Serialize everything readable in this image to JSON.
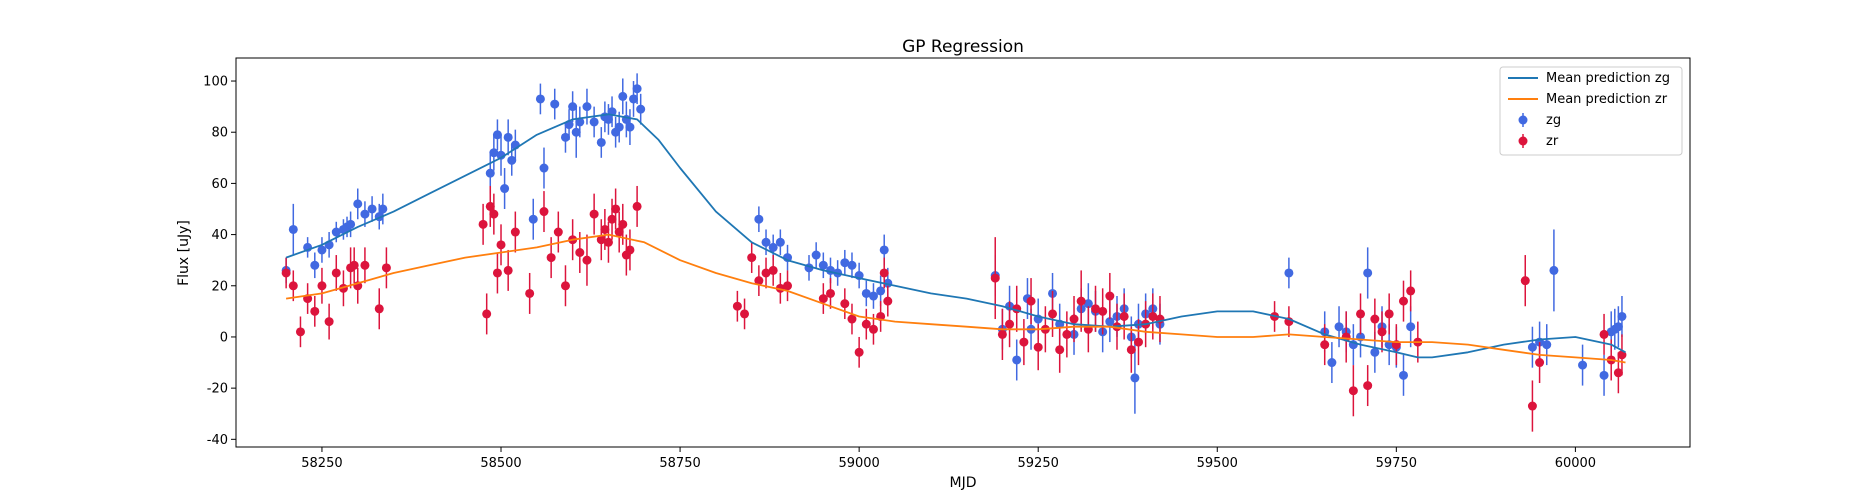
{
  "chart_data": {
    "type": "scatter",
    "title": "GP Regression",
    "xlabel": "MJD",
    "ylabel": "Flux [uJy]",
    "xlim": [
      58130,
      60160
    ],
    "ylim": [
      -43,
      109
    ],
    "xticks": [
      58250,
      58500,
      58750,
      59000,
      59250,
      59500,
      59750,
      60000
    ],
    "yticks": [
      -40,
      -20,
      0,
      20,
      40,
      60,
      80,
      100
    ],
    "legend_position": "top-right",
    "grid": false,
    "colors": {
      "zg_line": "#1f77b4",
      "zr_line": "#ff7f0e",
      "zg_points": "#4169e1",
      "zr_points": "#dc143c"
    },
    "lines": [
      {
        "name": "Mean prediction zg",
        "x": [
          58200,
          58250,
          58300,
          58350,
          58400,
          58450,
          58500,
          58550,
          58600,
          58650,
          58690,
          58720,
          58750,
          58800,
          58850,
          58900,
          58950,
          59000,
          59050,
          59100,
          59150,
          59200,
          59250,
          59300,
          59350,
          59400,
          59450,
          59500,
          59550,
          59600,
          59650,
          59700,
          59750,
          59780,
          59800,
          59850,
          59900,
          59950,
          60000,
          60050,
          60070
        ],
        "y": [
          31,
          36,
          43,
          49,
          56,
          63,
          70,
          79,
          85,
          87,
          85,
          77,
          66,
          49,
          37,
          30,
          26,
          23,
          20,
          17,
          15,
          12,
          8,
          5,
          4,
          5,
          8,
          10,
          10,
          7,
          1,
          -3,
          -6,
          -8,
          -8,
          -6,
          -3,
          -1,
          0,
          -3,
          -6
        ]
      },
      {
        "name": "Mean prediction zr",
        "x": [
          58200,
          58250,
          58300,
          58350,
          58400,
          58450,
          58500,
          58550,
          58600,
          58650,
          58700,
          58750,
          58800,
          58850,
          58900,
          58950,
          59000,
          59050,
          59100,
          59150,
          59200,
          59250,
          59300,
          59350,
          59400,
          59450,
          59500,
          59550,
          59600,
          59650,
          59700,
          59750,
          59800,
          59850,
          59900,
          59950,
          60000,
          60050,
          60070
        ],
        "y": [
          15,
          17,
          21,
          25,
          28,
          31,
          33,
          35,
          38,
          40,
          37,
          30,
          25,
          21,
          18,
          13,
          8,
          6,
          5,
          4,
          3,
          3,
          4,
          4,
          2,
          1,
          0,
          0,
          1,
          0,
          -1,
          -2,
          -2,
          -3,
          -5,
          -7,
          -8,
          -9,
          -10
        ]
      }
    ],
    "series": [
      {
        "name": "zg",
        "x": [
          58200,
          58210,
          58230,
          58240,
          58250,
          58260,
          58270,
          58280,
          58285,
          58290,
          58300,
          58310,
          58320,
          58330,
          58335,
          58485,
          58490,
          58495,
          58500,
          58505,
          58510,
          58515,
          58520,
          58545,
          58555,
          58560,
          58575,
          58590,
          58595,
          58600,
          58605,
          58610,
          58620,
          58630,
          58640,
          58645,
          58650,
          58655,
          58660,
          58665,
          58670,
          58675,
          58680,
          58685,
          58690,
          58695,
          58860,
          58870,
          58880,
          58890,
          58900,
          58930,
          58940,
          58950,
          58960,
          58970,
          58980,
          58990,
          59000,
          59010,
          59020,
          59030,
          59035,
          59040,
          59190,
          59200,
          59210,
          59220,
          59235,
          59240,
          59250,
          59270,
          59280,
          59300,
          59310,
          59320,
          59330,
          59340,
          59350,
          59360,
          59370,
          59380,
          59385,
          59390,
          59400,
          59410,
          59420,
          59600,
          59650,
          59660,
          59670,
          59680,
          59690,
          59700,
          59710,
          59720,
          59730,
          59740,
          59750,
          59760,
          59770,
          59940,
          59950,
          59960,
          59970,
          60010,
          60040,
          60050,
          60055,
          60060,
          60065
        ],
        "y": [
          26,
          42,
          35,
          28,
          34,
          36,
          41,
          42,
          43,
          44,
          52,
          48,
          50,
          47,
          50,
          64,
          72,
          79,
          71,
          58,
          78,
          69,
          75,
          46,
          93,
          66,
          91,
          78,
          83,
          90,
          80,
          84,
          90,
          84,
          76,
          86,
          85,
          88,
          80,
          82,
          94,
          85,
          82,
          93,
          97,
          89,
          46,
          37,
          35,
          37,
          31,
          27,
          32,
          28,
          26,
          25,
          29,
          28,
          24,
          17,
          16,
          18,
          34,
          21,
          24,
          3,
          12,
          -9,
          15,
          3,
          7,
          17,
          5,
          1,
          11,
          13,
          10,
          2,
          6,
          8,
          11,
          0,
          -16,
          5,
          9,
          11,
          5,
          25,
          2,
          -10,
          4,
          2,
          -3,
          0,
          25,
          -6,
          4,
          -3,
          -4,
          -15,
          4,
          -4,
          -2,
          -3,
          26,
          -11,
          -15,
          2,
          3,
          4,
          8
        ],
        "err": [
          5,
          10,
          4,
          5,
          5,
          5,
          4,
          4,
          4,
          5,
          6,
          5,
          5,
          5,
          6,
          8,
          7,
          6,
          8,
          8,
          7,
          6,
          6,
          8,
          6,
          8,
          6,
          6,
          6,
          6,
          10,
          6,
          7,
          6,
          6,
          6,
          6,
          6,
          6,
          6,
          7,
          7,
          7,
          7,
          6,
          6,
          5,
          5,
          5,
          5,
          5,
          5,
          5,
          5,
          5,
          5,
          5,
          5,
          5,
          5,
          5,
          6,
          6,
          6,
          8,
          8,
          8,
          8,
          8,
          8,
          8,
          8,
          8,
          8,
          8,
          8,
          8,
          8,
          8,
          8,
          8,
          8,
          14,
          8,
          8,
          8,
          8,
          6,
          8,
          8,
          8,
          8,
          8,
          8,
          10,
          8,
          8,
          8,
          8,
          8,
          8,
          8,
          8,
          8,
          16,
          8,
          8,
          8,
          8,
          8,
          8
        ]
      },
      {
        "name": "zr",
        "x": [
          58200,
          58210,
          58220,
          58230,
          58240,
          58250,
          58260,
          58270,
          58280,
          58290,
          58295,
          58300,
          58310,
          58330,
          58340,
          58475,
          58480,
          58485,
          58490,
          58495,
          58500,
          58510,
          58520,
          58540,
          58560,
          58570,
          58580,
          58590,
          58600,
          58610,
          58620,
          58630,
          58640,
          58645,
          58650,
          58655,
          58660,
          58665,
          58670,
          58675,
          58680,
          58690,
          58830,
          58840,
          58850,
          58860,
          58870,
          58880,
          58890,
          58900,
          58950,
          58960,
          58980,
          58990,
          59000,
          59010,
          59020,
          59030,
          59035,
          59040,
          59190,
          59200,
          59210,
          59220,
          59230,
          59240,
          59250,
          59260,
          59270,
          59280,
          59290,
          59300,
          59310,
          59320,
          59330,
          59340,
          59350,
          59360,
          59370,
          59380,
          59390,
          59400,
          59410,
          59420,
          59580,
          59600,
          59650,
          59680,
          59690,
          59700,
          59710,
          59720,
          59730,
          59740,
          59750,
          59760,
          59770,
          59780,
          59930,
          59940,
          59950,
          60040,
          60050,
          60060,
          60065
        ],
        "y": [
          25,
          20,
          2,
          15,
          10,
          20,
          6,
          25,
          19,
          27,
          28,
          20,
          28,
          11,
          27,
          44,
          9,
          51,
          48,
          25,
          36,
          26,
          41,
          17,
          49,
          31,
          41,
          20,
          38,
          33,
          30,
          48,
          38,
          42,
          37,
          46,
          50,
          41,
          44,
          32,
          34,
          51,
          12,
          9,
          31,
          22,
          25,
          26,
          19,
          20,
          15,
          17,
          13,
          7,
          -6,
          5,
          3,
          8,
          25,
          14,
          23,
          1,
          5,
          11,
          -2,
          14,
          -4,
          3,
          9,
          -5,
          1,
          7,
          14,
          3,
          11,
          10,
          16,
          4,
          8,
          -5,
          -2,
          5,
          8,
          7,
          8,
          6,
          -3,
          0,
          -21,
          9,
          -19,
          7,
          2,
          9,
          -3,
          14,
          18,
          -2,
          22,
          -27,
          -10,
          1,
          -9,
          -14,
          -7
        ],
        "err": [
          6,
          6,
          6,
          6,
          6,
          7,
          7,
          7,
          7,
          8,
          7,
          7,
          7,
          8,
          8,
          8,
          8,
          8,
          8,
          8,
          8,
          8,
          8,
          8,
          8,
          8,
          8,
          8,
          8,
          8,
          10,
          8,
          8,
          8,
          8,
          8,
          8,
          8,
          8,
          8,
          8,
          8,
          6,
          6,
          6,
          6,
          6,
          6,
          6,
          6,
          6,
          6,
          6,
          6,
          6,
          6,
          6,
          6,
          6,
          6,
          16,
          10,
          9,
          9,
          9,
          9,
          9,
          9,
          9,
          9,
          9,
          9,
          12,
          9,
          9,
          9,
          9,
          9,
          9,
          9,
          9,
          9,
          9,
          9,
          6,
          6,
          8,
          10,
          10,
          8,
          8,
          8,
          8,
          8,
          8,
          8,
          8,
          8,
          10,
          10,
          8,
          8,
          8,
          8,
          8
        ]
      }
    ]
  }
}
